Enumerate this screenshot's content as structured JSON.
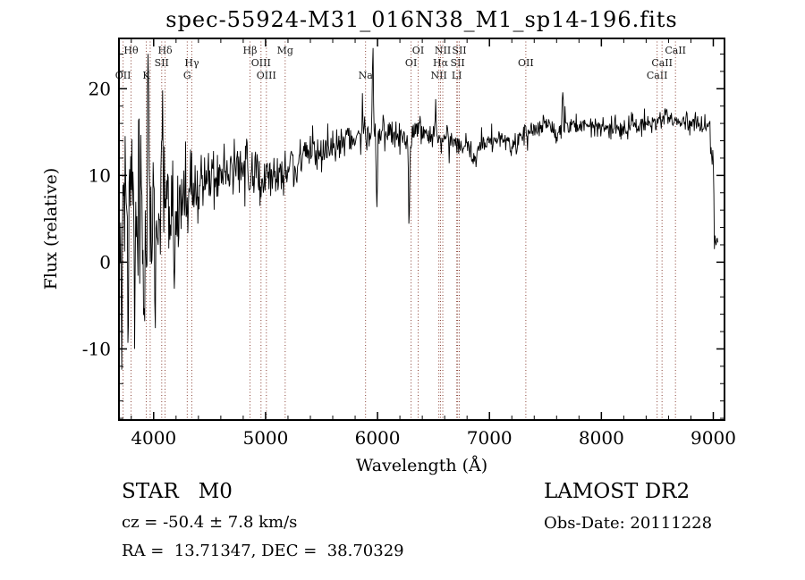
{
  "chart_data": {
    "type": "line",
    "title": "spec-55924-M31_016N38_M1_sp14-196.fits",
    "xlabel": "Wavelength (Å)",
    "ylabel": "Flux (relative)",
    "xlim": [
      3690,
      9100
    ],
    "ylim": [
      -18.2,
      25.8
    ],
    "x_ticks": [
      4000,
      5000,
      6000,
      7000,
      8000,
      9000
    ],
    "y_ticks": [
      -10,
      0,
      10,
      20
    ],
    "x_minor_step": 200,
    "y_minor_step": 2,
    "grid": false,
    "legend": "none",
    "series_color": "#000000",
    "line_marker_color": "#8b4236",
    "label_color": "#1a1a1a",
    "label_rows": [
      60,
      74,
      88
    ],
    "lines": [
      {
        "label": "OII",
        "wavelength": 3727,
        "row": 3
      },
      {
        "label": "Hθ",
        "wavelength": 3798,
        "row": 1
      },
      {
        "label": "K",
        "wavelength": 3934,
        "row": 3
      },
      {
        "label": "",
        "wavelength": 3969,
        "row": 3
      },
      {
        "label": "SII",
        "wavelength": 4072,
        "row": 2
      },
      {
        "label": "Hδ",
        "wavelength": 4102,
        "row": 1
      },
      {
        "label": "G",
        "wavelength": 4300,
        "row": 3
      },
      {
        "label": "Hγ",
        "wavelength": 4341,
        "row": 2
      },
      {
        "label": "Hβ",
        "wavelength": 4861,
        "row": 1
      },
      {
        "label": "OIII",
        "wavelength": 4959,
        "row": 2
      },
      {
        "label": "OIII",
        "wavelength": 5007,
        "row": 3
      },
      {
        "label": "Mg",
        "wavelength": 5175,
        "row": 1
      },
      {
        "label": "Na",
        "wavelength": 5893,
        "row": 3
      },
      {
        "label": "OI",
        "wavelength": 6300,
        "row": 2
      },
      {
        "label": "OI",
        "wavelength": 6363,
        "row": 1
      },
      {
        "label": "NII",
        "wavelength": 6548,
        "row": 3
      },
      {
        "label": "Hα",
        "wavelength": 6563,
        "row": 2
      },
      {
        "label": "NII",
        "wavelength": 6583,
        "row": 1
      },
      {
        "label": "LI",
        "wavelength": 6708,
        "row": 3
      },
      {
        "label": "SII",
        "wavelength": 6716,
        "row": 2
      },
      {
        "label": "SII",
        "wavelength": 6731,
        "row": 1
      },
      {
        "label": "OII",
        "wavelength": 7325,
        "row": 2
      },
      {
        "label": "CaII",
        "wavelength": 8498,
        "row": 3
      },
      {
        "label": "CaII",
        "wavelength": 8542,
        "row": 2
      },
      {
        "label": "CaII",
        "wavelength": 8662,
        "row": 1
      }
    ],
    "spectrum": {
      "x_start": 3700,
      "x_end": 9040,
      "step": 5,
      "seed": 20111228,
      "continuum": [
        [
          3700,
          2.5
        ],
        [
          3780,
          3.2
        ],
        [
          3860,
          4.2
        ],
        [
          3960,
          5.2
        ],
        [
          4080,
          6.2
        ],
        [
          4200,
          7.2
        ],
        [
          4330,
          8.2
        ],
        [
          4470,
          9.0
        ],
        [
          4620,
          9.8
        ],
        [
          4780,
          10.4
        ],
        [
          4900,
          10.2
        ],
        [
          5000,
          10.0
        ],
        [
          5090,
          9.8
        ],
        [
          5180,
          10.6
        ],
        [
          5300,
          11.8
        ],
        [
          5450,
          12.6
        ],
        [
          5600,
          13.4
        ],
        [
          5750,
          14.2
        ],
        [
          5900,
          15.0
        ],
        [
          6000,
          15.2
        ],
        [
          6120,
          14.9
        ],
        [
          6250,
          14.4
        ],
        [
          6400,
          14.9
        ],
        [
          6550,
          14.4
        ],
        [
          6700,
          13.9
        ],
        [
          6820,
          13.2
        ],
        [
          6950,
          13.9
        ],
        [
          7100,
          14.4
        ],
        [
          7230,
          14.1
        ],
        [
          7380,
          15.3
        ],
        [
          7520,
          15.9
        ],
        [
          7650,
          15.4
        ],
        [
          7800,
          16.1
        ],
        [
          7950,
          15.7
        ],
        [
          8100,
          15.4
        ],
        [
          8250,
          15.9
        ],
        [
          8400,
          16.1
        ],
        [
          8550,
          16.5
        ],
        [
          8700,
          16.1
        ],
        [
          8850,
          16.3
        ],
        [
          8960,
          15.6
        ],
        [
          9000,
          12.0
        ],
        [
          9012,
          0.8
        ],
        [
          9025,
          3.0
        ],
        [
          9040,
          2.5
        ]
      ],
      "noise_sigma": [
        [
          3700,
          5.2
        ],
        [
          3820,
          4.8
        ],
        [
          3950,
          4.0
        ],
        [
          4100,
          3.2
        ],
        [
          4300,
          2.4
        ],
        [
          4550,
          1.8
        ],
        [
          4800,
          1.5
        ],
        [
          5100,
          1.3
        ],
        [
          5400,
          1.1
        ],
        [
          5700,
          1.0
        ],
        [
          6000,
          0.9
        ],
        [
          6400,
          0.8
        ],
        [
          6900,
          0.75
        ],
        [
          7400,
          0.65
        ],
        [
          8000,
          0.6
        ],
        [
          8600,
          0.6
        ],
        [
          9040,
          0.7
        ]
      ],
      "features": [
        {
          "center": 3712,
          "width": 4,
          "amp": -12
        },
        {
          "center": 3745,
          "width": 4,
          "amp": 9
        },
        {
          "center": 3770,
          "width": 4,
          "amp": -16
        },
        {
          "center": 3800,
          "width": 4,
          "amp": 11
        },
        {
          "center": 3830,
          "width": 4,
          "amp": -13
        },
        {
          "center": 3868,
          "width": 4,
          "amp": 12
        },
        {
          "center": 3915,
          "width": 4,
          "amp": -11
        },
        {
          "center": 3948,
          "width": 5,
          "amp": 14
        },
        {
          "center": 4012,
          "width": 5,
          "amp": -9
        },
        {
          "center": 4078,
          "width": 5,
          "amp": 10
        },
        {
          "center": 4185,
          "width": 4,
          "amp": -7
        },
        {
          "center": 4330,
          "width": 5,
          "amp": 5
        },
        {
          "center": 4862,
          "width": 8,
          "amp": -2.5
        },
        {
          "center": 5420,
          "width": 5,
          "amp": 3.5
        },
        {
          "center": 5865,
          "width": 4,
          "amp": 4
        },
        {
          "center": 5958,
          "width": 5,
          "amp": 9.6
        },
        {
          "center": 5995,
          "width": 5,
          "amp": -9.5
        },
        {
          "center": 6282,
          "width": 5,
          "amp": -11.5
        },
        {
          "center": 6520,
          "width": 4,
          "amp": 3.5
        },
        {
          "center": 6870,
          "width": 20,
          "amp": -2.0
        },
        {
          "center": 7190,
          "width": 16,
          "amp": -1.2
        },
        {
          "center": 7600,
          "width": 14,
          "amp": -1.6
        },
        {
          "center": 7655,
          "width": 5,
          "amp": 4.2
        },
        {
          "center": 8230,
          "width": 12,
          "amp": -1.0
        }
      ]
    }
  },
  "annotations": {
    "class_label": "STAR   M0",
    "survey": "LAMOST DR2",
    "cz": "cz = -50.4 ± 7.8 km/s",
    "obs_date": "Obs-Date: 20111228",
    "coords": "RA =  13.71347, DEC =  38.70329"
  }
}
